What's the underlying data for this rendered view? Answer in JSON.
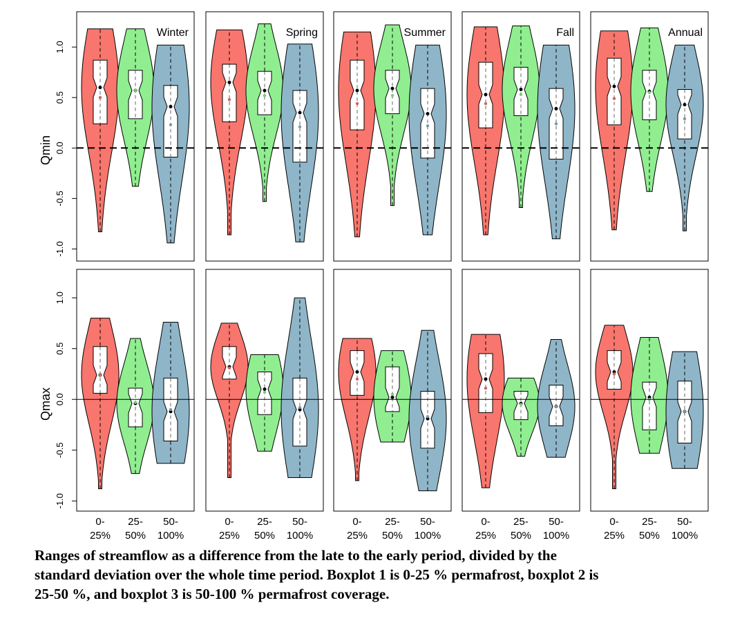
{
  "chart_data": [
    {
      "type": "violin",
      "title": "Winter",
      "ylabel": "Qmin",
      "colors": [
        "#f8766d",
        "#90ee90",
        "#8fb5c8"
      ],
      "ylim": [
        -1.12,
        1.35
      ],
      "yticks": [
        {
          "value": -1.0,
          "label": "-1.0"
        },
        {
          "value": -0.5,
          "label": "-0.5"
        },
        {
          "value": 0.0,
          "label": "0.0"
        },
        {
          "value": 0.5,
          "label": "0.5"
        },
        {
          "value": 1.0,
          "label": "1.0"
        }
      ],
      "reference_line": 0,
      "boxes": [
        {
          "min": -0.83,
          "q1": 0.24,
          "median": 0.6,
          "q3": 0.87,
          "max": 1.18,
          "mean": 0.5
        },
        {
          "min": -0.38,
          "q1": 0.29,
          "median": 0.57,
          "q3": 0.77,
          "max": 1.18,
          "mean": 0.57
        },
        {
          "min": -0.94,
          "q1": -0.09,
          "median": 0.41,
          "q3": 0.62,
          "max": 1.02,
          "mean": 0.23
        }
      ]
    },
    {
      "type": "violin",
      "title": "Spring",
      "colors": [
        "#f8766d",
        "#90ee90",
        "#8fb5c8"
      ],
      "ylim": [
        -1.12,
        1.35
      ],
      "reference_line": 0,
      "boxes": [
        {
          "min": -0.86,
          "q1": 0.26,
          "median": 0.65,
          "q3": 0.83,
          "max": 1.17,
          "mean": 0.48
        },
        {
          "min": -0.53,
          "q1": 0.33,
          "median": 0.57,
          "q3": 0.76,
          "max": 1.23,
          "mean": 0.52
        },
        {
          "min": -0.93,
          "q1": -0.14,
          "median": 0.35,
          "q3": 0.57,
          "max": 1.03,
          "mean": 0.21
        }
      ]
    },
    {
      "type": "violin",
      "title": "Summer",
      "colors": [
        "#f8766d",
        "#90ee90",
        "#8fb5c8"
      ],
      "ylim": [
        -1.12,
        1.35
      ],
      "reference_line": 0,
      "boxes": [
        {
          "min": -0.88,
          "q1": 0.18,
          "median": 0.57,
          "q3": 0.87,
          "max": 1.15,
          "mean": 0.44
        },
        {
          "min": -0.57,
          "q1": 0.34,
          "median": 0.59,
          "q3": 0.77,
          "max": 1.22,
          "mean": 0.52
        },
        {
          "min": -0.86,
          "q1": -0.1,
          "median": 0.34,
          "q3": 0.59,
          "max": 1.02,
          "mean": 0.22
        }
      ]
    },
    {
      "type": "violin",
      "title": "Fall",
      "colors": [
        "#f8766d",
        "#90ee90",
        "#8fb5c8"
      ],
      "ylim": [
        -1.12,
        1.35
      ],
      "reference_line": 0,
      "boxes": [
        {
          "min": -0.86,
          "q1": 0.2,
          "median": 0.53,
          "q3": 0.85,
          "max": 1.2,
          "mean": 0.44
        },
        {
          "min": -0.59,
          "q1": 0.32,
          "median": 0.58,
          "q3": 0.8,
          "max": 1.21,
          "mean": 0.53
        },
        {
          "min": -0.9,
          "q1": -0.11,
          "median": 0.39,
          "q3": 0.59,
          "max": 1.02,
          "mean": 0.24
        }
      ]
    },
    {
      "type": "violin",
      "title": "Annual",
      "colors": [
        "#f8766d",
        "#90ee90",
        "#8fb5c8"
      ],
      "ylim": [
        -1.12,
        1.35
      ],
      "reference_line": 0,
      "boxes": [
        {
          "min": -0.81,
          "q1": 0.23,
          "median": 0.61,
          "q3": 0.89,
          "max": 1.16,
          "mean": 0.49
        },
        {
          "min": -0.43,
          "q1": 0.28,
          "median": 0.56,
          "q3": 0.77,
          "max": 1.19,
          "mean": 0.55
        },
        {
          "min": -0.82,
          "q1": 0.09,
          "median": 0.43,
          "q3": 0.58,
          "max": 1.02,
          "mean": 0.29
        }
      ]
    },
    {
      "type": "violin",
      "ylabel": "Qmax",
      "categories": [
        "0-\n25%",
        "25-\n50%",
        "50-\n100%"
      ],
      "colors": [
        "#f8766d",
        "#90ee90",
        "#8fb5c8"
      ],
      "ylim": [
        -1.1,
        1.28
      ],
      "yticks": [
        {
          "value": -1.0,
          "label": "-1.0"
        },
        {
          "value": -0.5,
          "label": "-0.5"
        },
        {
          "value": 0.0,
          "label": "0.0"
        },
        {
          "value": 0.5,
          "label": "0.5"
        },
        {
          "value": 1.0,
          "label": "1.0"
        }
      ],
      "reference_line": 0,
      "boxes": [
        {
          "min": -0.88,
          "q1": 0.06,
          "median": 0.24,
          "q3": 0.52,
          "max": 0.8,
          "mean": 0.24
        },
        {
          "min": -0.73,
          "q1": -0.27,
          "median": -0.04,
          "q3": 0.11,
          "max": 0.6,
          "mean": -0.03
        },
        {
          "min": -0.63,
          "q1": -0.41,
          "median": -0.12,
          "q3": 0.21,
          "max": 0.76,
          "mean": -0.1
        }
      ]
    },
    {
      "type": "violin",
      "categories": [
        "0-\n25%",
        "25-\n50%",
        "50-\n100%"
      ],
      "colors": [
        "#f8766d",
        "#90ee90",
        "#8fb5c8"
      ],
      "ylim": [
        -1.1,
        1.28
      ],
      "reference_line": 0,
      "boxes": [
        {
          "min": -0.77,
          "q1": 0.2,
          "median": 0.32,
          "q3": 0.52,
          "max": 0.75,
          "mean": 0.31
        },
        {
          "min": -0.51,
          "q1": -0.15,
          "median": 0.1,
          "q3": 0.27,
          "max": 0.44,
          "mean": 0.07
        },
        {
          "min": -0.77,
          "q1": -0.46,
          "median": -0.1,
          "q3": 0.21,
          "max": 1.0,
          "mean": -0.08
        }
      ]
    },
    {
      "type": "violin",
      "categories": [
        "0-\n25%",
        "25-\n50%",
        "50-\n100%"
      ],
      "colors": [
        "#f8766d",
        "#90ee90",
        "#8fb5c8"
      ],
      "ylim": [
        -1.1,
        1.28
      ],
      "reference_line": 0,
      "boxes": [
        {
          "min": -0.8,
          "q1": 0.04,
          "median": 0.27,
          "q3": 0.48,
          "max": 0.6,
          "mean": 0.2
        },
        {
          "min": -0.42,
          "q1": -0.12,
          "median": 0.02,
          "q3": 0.32,
          "max": 0.48,
          "mean": 0.05
        },
        {
          "min": -0.9,
          "q1": -0.48,
          "median": -0.19,
          "q3": 0.08,
          "max": 0.68,
          "mean": -0.17
        }
      ]
    },
    {
      "type": "violin",
      "categories": [
        "0-\n25%",
        "25-\n50%",
        "50-\n100%"
      ],
      "colors": [
        "#f8766d",
        "#90ee90",
        "#8fb5c8"
      ],
      "ylim": [
        -1.1,
        1.28
      ],
      "reference_line": 0,
      "boxes": [
        {
          "min": -0.87,
          "q1": -0.13,
          "median": 0.2,
          "q3": 0.45,
          "max": 0.64,
          "mean": 0.11
        },
        {
          "min": -0.56,
          "q1": -0.2,
          "median": -0.04,
          "q3": 0.08,
          "max": 0.21,
          "mean": -0.05
        },
        {
          "min": -0.57,
          "q1": -0.26,
          "median": -0.07,
          "q3": 0.14,
          "max": 0.59,
          "mean": -0.07
        }
      ]
    },
    {
      "type": "violin",
      "categories": [
        "0-\n25%",
        "25-\n50%",
        "50-\n100%"
      ],
      "colors": [
        "#f8766d",
        "#90ee90",
        "#8fb5c8"
      ],
      "ylim": [
        -1.1,
        1.28
      ],
      "reference_line": 0,
      "boxes": [
        {
          "min": -0.88,
          "q1": 0.1,
          "median": 0.27,
          "q3": 0.48,
          "max": 0.73,
          "mean": 0.25
        },
        {
          "min": -0.53,
          "q1": -0.3,
          "median": 0.02,
          "q3": 0.17,
          "max": 0.61,
          "mean": 0.0
        },
        {
          "min": -0.68,
          "q1": -0.43,
          "median": -0.12,
          "q3": 0.18,
          "max": 0.47,
          "mean": -0.12
        }
      ]
    }
  ],
  "caption": [
    "Ranges of streamflow as a difference from the late to the early period, divided by the",
    "standard deviation over the whole time period. Boxplot 1 is 0-25 % permafrost, boxplot 2 is",
    "25-50 %, and boxplot 3 is 50-100 % permafrost coverage."
  ]
}
